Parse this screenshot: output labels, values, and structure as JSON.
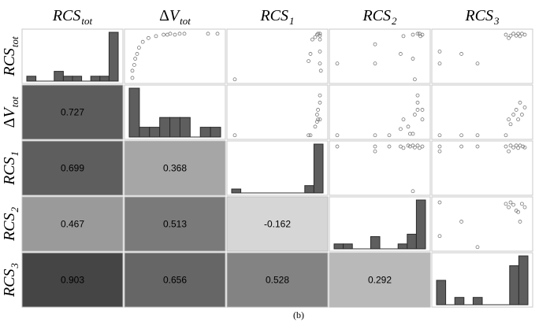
{
  "figure": {
    "caption": "(b)"
  },
  "chart_data": {
    "type": "scatter-matrix",
    "variables": [
      {
        "id": "RCS_tot",
        "symbol": "RCS",
        "prefix": "",
        "sub": "tot"
      },
      {
        "id": "dV_tot",
        "symbol": "V",
        "prefix": "Δ",
        "sub": "tot"
      },
      {
        "id": "RCS_1",
        "symbol": "RCS",
        "prefix": "",
        "sub": "1"
      },
      {
        "id": "RCS_2",
        "symbol": "RCS",
        "prefix": "",
        "sub": "2"
      },
      {
        "id": "RCS_3",
        "symbol": "RCS",
        "prefix": "",
        "sub": "3"
      }
    ],
    "correlations": [
      {
        "row": 1,
        "col": 0,
        "value": "0.727",
        "shade": "#5c5c5c"
      },
      {
        "row": 2,
        "col": 0,
        "value": "0.699",
        "shade": "#5e5e5e"
      },
      {
        "row": 2,
        "col": 1,
        "value": "0.368",
        "shade": "#a6a6a6"
      },
      {
        "row": 3,
        "col": 0,
        "value": "0.467",
        "shade": "#9a9a9a"
      },
      {
        "row": 3,
        "col": 1,
        "value": "0.513",
        "shade": "#7a7a7a"
      },
      {
        "row": 3,
        "col": 2,
        "value": "-0.162",
        "shade": "#d6d6d6"
      },
      {
        "row": 4,
        "col": 0,
        "value": "0.903",
        "shade": "#454545"
      },
      {
        "row": 4,
        "col": 1,
        "value": "0.656",
        "shade": "#666666"
      },
      {
        "row": 4,
        "col": 2,
        "value": "0.528",
        "shade": "#838383"
      },
      {
        "row": 4,
        "col": 3,
        "value": "0.292",
        "shade": "#b9b9b9"
      }
    ],
    "histograms": [
      {
        "var": 0,
        "bins": 10,
        "values": [
          0.1,
          0,
          0,
          0.2,
          0.1,
          0.1,
          0,
          0.1,
          0.1,
          1.0
        ]
      },
      {
        "var": 1,
        "bins": 9,
        "values": [
          1.0,
          0.2,
          0.2,
          0.4,
          0.4,
          0.4,
          0,
          0.2,
          0.2
        ]
      },
      {
        "var": 2,
        "bins": 10,
        "values": [
          0.08,
          0,
          0,
          0,
          0,
          0,
          0,
          0,
          0.15,
          1.0
        ]
      },
      {
        "var": 3,
        "bins": 10,
        "values": [
          0.1,
          0.1,
          0,
          0,
          0.25,
          0,
          0,
          0.1,
          0.3,
          1.0
        ]
      },
      {
        "var": 4,
        "bins": 10,
        "values": [
          0.5,
          0,
          0.15,
          0,
          0.15,
          0,
          0,
          0,
          0.8,
          1.0
        ]
      }
    ],
    "scatter": [
      {
        "row": 0,
        "col": 1,
        "points": [
          [
            0.05,
            0.05
          ],
          [
            0.05,
            0.2
          ],
          [
            0.07,
            0.32
          ],
          [
            0.08,
            0.45
          ],
          [
            0.1,
            0.55
          ],
          [
            0.12,
            0.68
          ],
          [
            0.16,
            0.8
          ],
          [
            0.22,
            0.88
          ],
          [
            0.3,
            0.92
          ],
          [
            0.38,
            0.95
          ],
          [
            0.42,
            0.95
          ],
          [
            0.45,
            0.97
          ],
          [
            0.5,
            0.95
          ],
          [
            0.55,
            0.97
          ],
          [
            0.6,
            0.97
          ],
          [
            0.85,
            0.97
          ],
          [
            0.95,
            0.97
          ]
        ]
      },
      {
        "row": 0,
        "col": 2,
        "points": [
          [
            0.05,
            0.02
          ],
          [
            0.83,
            0.4
          ],
          [
            0.85,
            0.55
          ],
          [
            0.87,
            0.85
          ],
          [
            0.9,
            0.9
          ],
          [
            0.92,
            0.95
          ],
          [
            0.93,
            0.97
          ],
          [
            0.95,
            0.97
          ],
          [
            0.95,
            0.93
          ],
          [
            0.95,
            0.85
          ],
          [
            0.95,
            0.6
          ],
          [
            0.95,
            0.35
          ],
          [
            0.96,
            0.2
          ]
        ]
      },
      {
        "row": 0,
        "col": 3,
        "points": [
          [
            0.05,
            0.35
          ],
          [
            0.45,
            0.35
          ],
          [
            0.45,
            0.75
          ],
          [
            0.72,
            0.55
          ],
          [
            0.75,
            0.92
          ],
          [
            0.85,
            0.95
          ],
          [
            0.9,
            0.97
          ],
          [
            0.92,
            0.97
          ],
          [
            0.93,
            0.92
          ],
          [
            0.95,
            0.95
          ],
          [
            0.85,
            0.45
          ],
          [
            0.87,
            0.02
          ]
        ]
      },
      {
        "row": 0,
        "col": 4,
        "points": [
          [
            0.05,
            0.35
          ],
          [
            0.05,
            0.6
          ],
          [
            0.28,
            0.55
          ],
          [
            0.45,
            0.35
          ],
          [
            0.75,
            0.95
          ],
          [
            0.78,
            0.88
          ],
          [
            0.8,
            0.93
          ],
          [
            0.83,
            0.97
          ],
          [
            0.86,
            0.93
          ],
          [
            0.88,
            0.97
          ],
          [
            0.9,
            0.92
          ],
          [
            0.92,
            0.97
          ],
          [
            0.95,
            0.95
          ]
        ]
      },
      {
        "row": 1,
        "col": 2,
        "points": [
          [
            0.05,
            0.02
          ],
          [
            0.83,
            0.02
          ],
          [
            0.85,
            0.02
          ],
          [
            0.9,
            0.2
          ],
          [
            0.92,
            0.3
          ],
          [
            0.93,
            0.35
          ],
          [
            0.95,
            0.35
          ],
          [
            0.92,
            0.45
          ],
          [
            0.93,
            0.55
          ],
          [
            0.95,
            0.7
          ],
          [
            0.95,
            0.85
          ]
        ]
      },
      {
        "row": 1,
        "col": 3,
        "points": [
          [
            0.05,
            0.02
          ],
          [
            0.45,
            0.02
          ],
          [
            0.6,
            0.02
          ],
          [
            0.72,
            0.15
          ],
          [
            0.75,
            0.35
          ],
          [
            0.8,
            0.2
          ],
          [
            0.85,
            0.05
          ],
          [
            0.87,
            0.45
          ],
          [
            0.9,
            0.55
          ],
          [
            0.9,
            0.7
          ],
          [
            0.9,
            0.85
          ],
          [
            0.95,
            0.35
          ],
          [
            0.95,
            0.55
          ],
          [
            0.82,
            0.05
          ]
        ]
      },
      {
        "row": 1,
        "col": 4,
        "points": [
          [
            0.05,
            0.02
          ],
          [
            0.28,
            0.02
          ],
          [
            0.45,
            0.02
          ],
          [
            0.75,
            0.02
          ],
          [
            0.78,
            0.35
          ],
          [
            0.8,
            0.25
          ],
          [
            0.83,
            0.45
          ],
          [
            0.86,
            0.55
          ],
          [
            0.88,
            0.35
          ],
          [
            0.9,
            0.7
          ],
          [
            0.92,
            0.45
          ],
          [
            0.95,
            0.6
          ]
        ]
      },
      {
        "row": 2,
        "col": 3,
        "points": [
          [
            0.05,
            0.95
          ],
          [
            0.45,
            0.95
          ],
          [
            0.45,
            0.85
          ],
          [
            0.6,
            0.95
          ],
          [
            0.72,
            0.95
          ],
          [
            0.75,
            0.92
          ],
          [
            0.8,
            0.97
          ],
          [
            0.82,
            0.95
          ],
          [
            0.85,
            0.97
          ],
          [
            0.87,
            0.93
          ],
          [
            0.9,
            0.97
          ],
          [
            0.92,
            0.92
          ],
          [
            0.95,
            0.95
          ],
          [
            0.85,
            0.02
          ]
        ]
      },
      {
        "row": 2,
        "col": 4,
        "points": [
          [
            0.05,
            0.95
          ],
          [
            0.05,
            0.85
          ],
          [
            0.28,
            0.95
          ],
          [
            0.45,
            0.95
          ],
          [
            0.75,
            0.95
          ],
          [
            0.78,
            0.85
          ],
          [
            0.8,
            0.97
          ],
          [
            0.83,
            0.93
          ],
          [
            0.86,
            0.97
          ],
          [
            0.88,
            0.92
          ],
          [
            0.9,
            0.97
          ],
          [
            0.93,
            0.95
          ],
          [
            0.95,
            0.93
          ]
        ]
      },
      {
        "row": 3,
        "col": 4,
        "points": [
          [
            0.05,
            0.95
          ],
          [
            0.05,
            0.25
          ],
          [
            0.28,
            0.55
          ],
          [
            0.45,
            0.02
          ],
          [
            0.75,
            0.92
          ],
          [
            0.78,
            0.85
          ],
          [
            0.8,
            0.95
          ],
          [
            0.83,
            0.9
          ],
          [
            0.86,
            0.78
          ],
          [
            0.88,
            0.75
          ],
          [
            0.9,
            0.55
          ],
          [
            0.92,
            0.92
          ],
          [
            0.95,
            0.85
          ]
        ]
      }
    ]
  }
}
